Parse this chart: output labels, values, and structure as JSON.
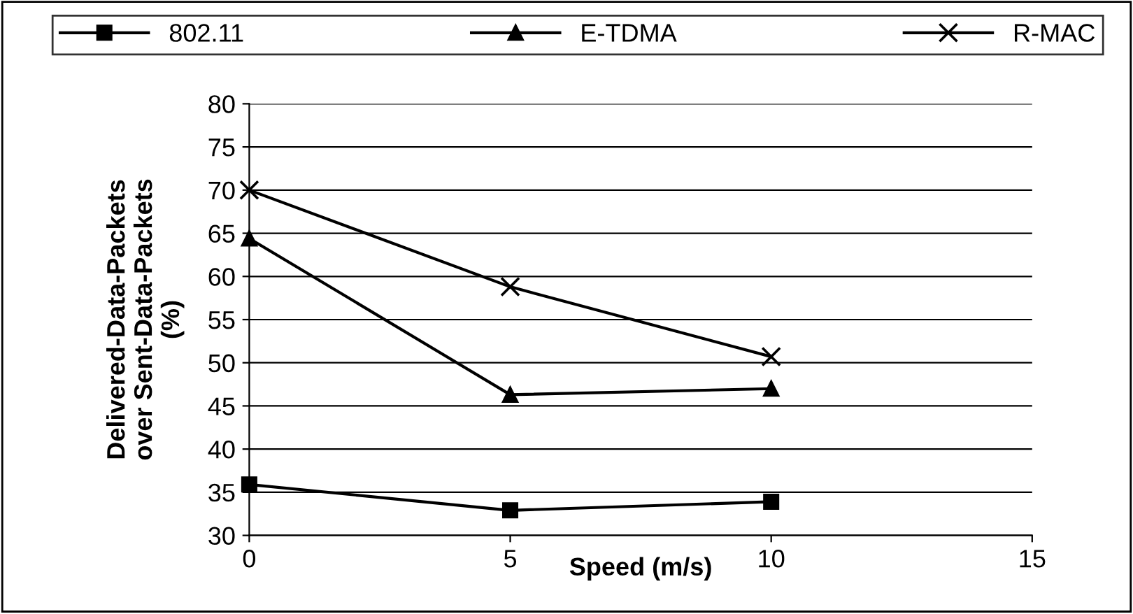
{
  "chart_data": {
    "type": "line",
    "xlabel": "Speed (m/s)",
    "ylabel": "Delivered-Data-Packets\nover Sent-Data-Packets\n(%)",
    "x": [
      0,
      5,
      10
    ],
    "series": [
      {
        "name": "802.11",
        "color": "#000000",
        "marker": "square",
        "values": [
          35.9,
          32.9,
          33.9
        ]
      },
      {
        "name": "E-TDMA",
        "color": "#000000",
        "marker": "triangle",
        "values": [
          64.4,
          46.3,
          47
        ]
      },
      {
        "name": "R-MAC",
        "color": "#000000",
        "marker": "cross",
        "values": [
          70,
          58.8,
          50.7
        ]
      }
    ],
    "xlim": [
      0,
      15
    ],
    "xticks": [
      0,
      5,
      10,
      15
    ],
    "ylim": [
      30,
      80
    ],
    "yticks": [
      30,
      35,
      40,
      45,
      50,
      55,
      60,
      65,
      70,
      75,
      80
    ],
    "grid": "y",
    "legend": "top",
    "line_style": "solid"
  }
}
